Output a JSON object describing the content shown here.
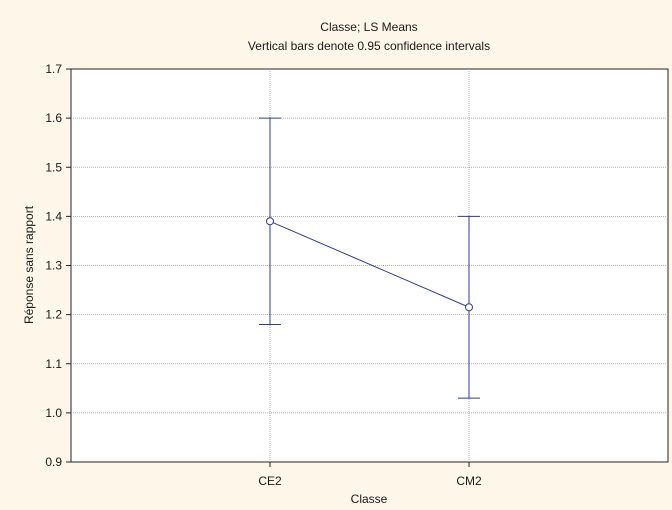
{
  "chart_data": {
    "type": "line",
    "title": "Classe; LS Means",
    "subtitle": "Vertical bars denote 0.95 confidence intervals",
    "xlabel": "Classe",
    "ylabel": "Réponse sans rapport",
    "categories": [
      "CE2",
      "CM2"
    ],
    "series": [
      {
        "values": [
          1.39,
          1.215
        ],
        "ci_lower": [
          1.18,
          1.03
        ],
        "ci_upper": [
          1.6,
          1.4
        ]
      }
    ],
    "ylim": [
      0.9,
      1.7
    ],
    "yticks": [
      "0.9",
      "1.0",
      "1.1",
      "1.2",
      "1.3",
      "1.4",
      "1.5",
      "1.6",
      "1.7"
    ],
    "grid": true,
    "colors": {
      "line": "#2f3d8f",
      "grid": "#9a9a9a",
      "plot_bg": "#ffffff",
      "page_bg": "#fdf6e9"
    }
  }
}
